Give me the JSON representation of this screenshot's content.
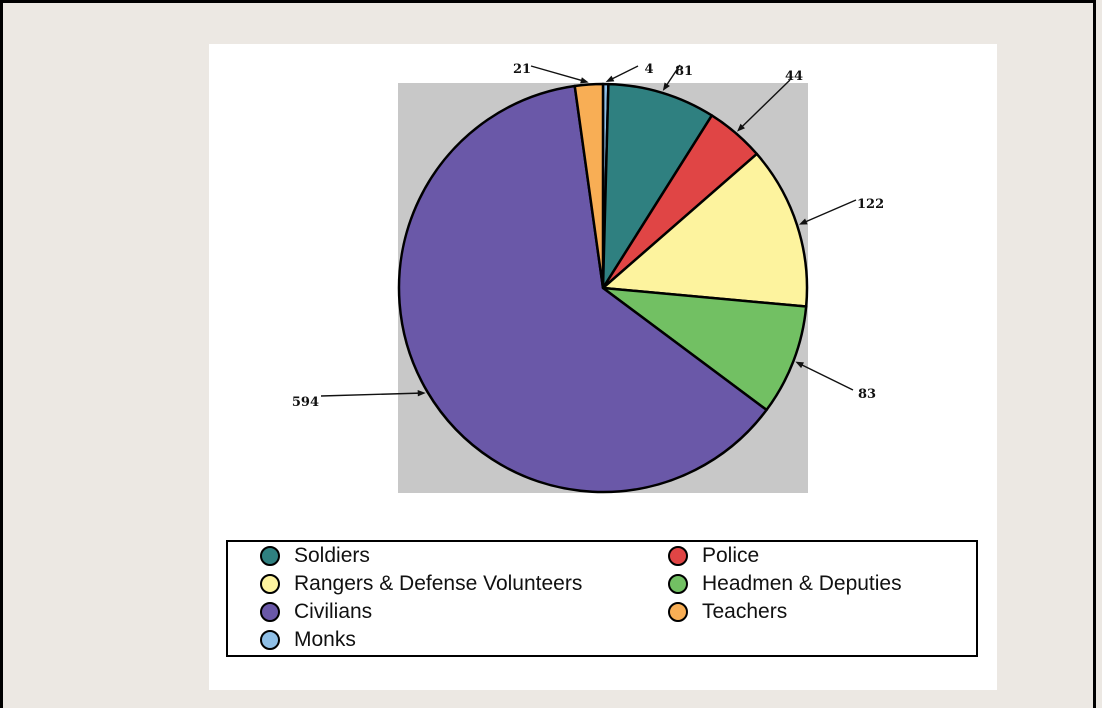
{
  "chart_data": {
    "type": "pie",
    "categories": [
      "Monks",
      "Soldiers",
      "Police",
      "Rangers & Defense Volunteers",
      "Headmen & Deputies",
      "Civilians",
      "Teachers"
    ],
    "values": [
      4,
      81,
      44,
      122,
      83,
      594,
      21
    ],
    "value_labels": [
      "4",
      "81",
      "44",
      "122",
      "83",
      "594",
      "21"
    ],
    "colors": [
      "#8fbfe6",
      "#2f8080",
      "#e04545",
      "#fdf39e",
      "#72c063",
      "#6a58a8",
      "#f8ae55"
    ],
    "start": "12 o'clock, clockwise",
    "legend": {
      "position": "bottom",
      "entries": [
        {
          "label": "Soldiers",
          "color": "#2f8080"
        },
        {
          "label": "Police",
          "color": "#e04545"
        },
        {
          "label": "Rangers & Defense Volunteers",
          "color": "#fdf39e"
        },
        {
          "label": "Headmen & Deputies",
          "color": "#72c063"
        },
        {
          "label": "Civilians",
          "color": "#6a58a8"
        },
        {
          "label": "Teachers",
          "color": "#f8ae55"
        },
        {
          "label": "Monks",
          "color": "#8fbfe6"
        }
      ]
    },
    "background": "#c8c8c8"
  }
}
